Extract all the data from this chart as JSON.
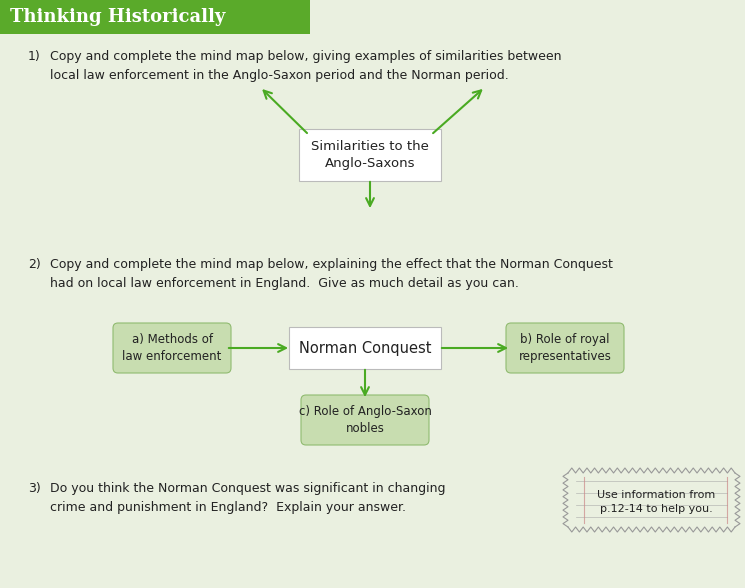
{
  "title": "Thinking Historically",
  "title_bg": "#5aaa2a",
  "title_color": "#ffffff",
  "bg_color": "#eaf0e0",
  "q1_text_num": "1)",
  "q1_text_body": "Copy and complete the mind map below, giving examples of similarities between\nlocal law enforcement in the Anglo-Saxon period and the Norman period.",
  "q1_center_label": "Similarities to the\nAnglo-Saxons",
  "q2_text_num": "2)",
  "q2_text_body": "Copy and complete the mind map below, explaining the effect that the Norman Conquest\nhad on local law enforcement in England.  Give as much detail as you can.",
  "q2_center_label": "Norman Conquest",
  "q2_left_label": "a) Methods of\nlaw enforcement",
  "q2_right_label": "b) Role of royal\nrepresentatives",
  "q2_bottom_label": "c) Role of Anglo-Saxon\nnobles",
  "q3_text_num": "3)",
  "q3_text_body": "Do you think the Norman Conquest was significant in changing\ncrime and punishment in England?  Explain your answer.",
  "q3_sidebar_line1": "Use information from",
  "q3_sidebar_line2": "p.12-14 to help you.",
  "arrow_color": "#4aaa22",
  "box_center_bg": "#ffffff",
  "box_center_border": "#bbbbbb",
  "box_satellite_bg": "#c8ddb0",
  "box_satellite_border": "#90bb70",
  "text_color": "#222222",
  "text_color_light": "#555555"
}
